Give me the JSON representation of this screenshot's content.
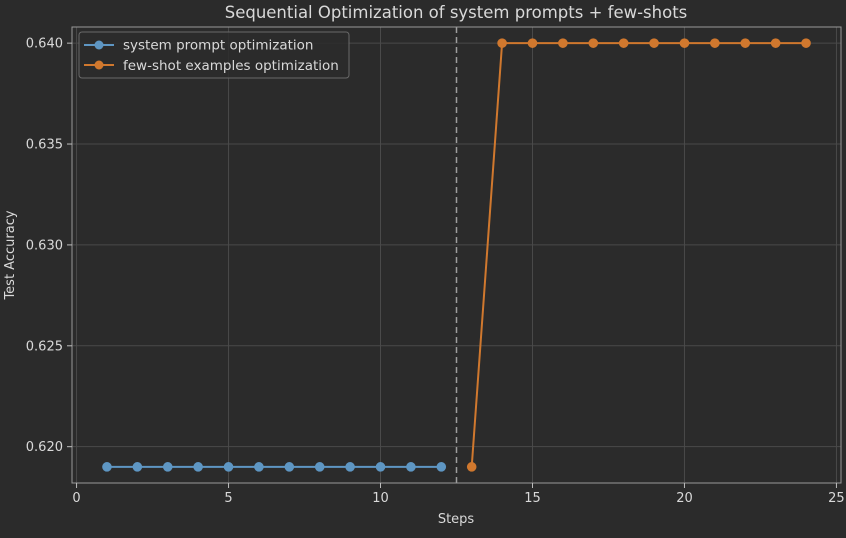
{
  "chart_data": {
    "type": "line",
    "title": "Sequential Optimization of system prompts + few-shots",
    "xlabel": "Steps",
    "ylabel": "Test Accuracy",
    "xlim": [
      -0.15,
      25.15
    ],
    "ylim": [
      0.6182,
      0.6408
    ],
    "xticks": [
      0,
      5,
      10,
      15,
      20,
      25
    ],
    "yticks": [
      0.62,
      0.625,
      0.63,
      0.635,
      0.64
    ],
    "ytick_labels": [
      "0.620",
      "0.625",
      "0.630",
      "0.635",
      "0.640"
    ],
    "grid": true,
    "legend_position": "top-left",
    "divider_x": 12.5,
    "series": [
      {
        "name": "system prompt optimization",
        "color": "#5e96c3",
        "x": [
          1,
          2,
          3,
          4,
          5,
          6,
          7,
          8,
          9,
          10,
          11,
          12
        ],
        "y": [
          0.619,
          0.619,
          0.619,
          0.619,
          0.619,
          0.619,
          0.619,
          0.619,
          0.619,
          0.619,
          0.619,
          0.619
        ]
      },
      {
        "name": "few-shot examples optimization",
        "color": "#d0782e",
        "x": [
          13,
          14,
          15,
          16,
          17,
          18,
          19,
          20,
          21,
          22,
          23,
          24
        ],
        "y": [
          0.619,
          0.64,
          0.64,
          0.64,
          0.64,
          0.64,
          0.64,
          0.64,
          0.64,
          0.64,
          0.64,
          0.64
        ]
      }
    ]
  }
}
